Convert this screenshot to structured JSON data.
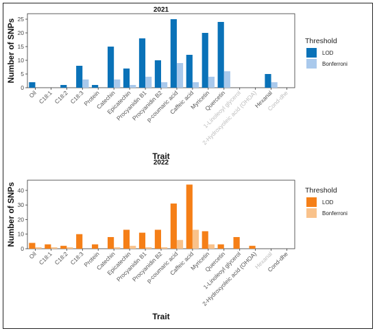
{
  "chart_data": [
    {
      "type": "bar",
      "title": "2021",
      "xlabel": "Trait",
      "ylabel": "Number of SNPs",
      "ylim": [
        0,
        27
      ],
      "yticks": [
        0,
        5,
        10,
        15,
        20,
        25
      ],
      "legend": {
        "title": "Threshold",
        "position": "right"
      },
      "categories": [
        "Oil",
        "C18:1",
        "C18:2",
        "C18:3",
        "Protein",
        "Catechin",
        "Epicatechin",
        "Procyanidin B1",
        "Procyanidin B2",
        "p-coumaric acid",
        "Caffeic acid",
        "Myricetin",
        "Quercetin",
        "1-Linoleoyl glycerol",
        "2-Hydroxyoleic acid (OHOA)",
        "Hexanal",
        "Cond-dhe"
      ],
      "dimmed_categories": [
        "1-Linoleoyl glycerol",
        "2-Hydroxyoleic acid (OHOA)",
        "Cond-dhe"
      ],
      "series": [
        {
          "name": "LOD",
          "color": "#0a72b8",
          "values": [
            2,
            0,
            1,
            8,
            1,
            15,
            7,
            18,
            10,
            25,
            12,
            20,
            24,
            0,
            0,
            5,
            0
          ]
        },
        {
          "name": "Bonferroni",
          "color": "#a9c9ec",
          "values": [
            0,
            0,
            0,
            3,
            0,
            3,
            1,
            4,
            2,
            9,
            2,
            4,
            6,
            0,
            0,
            2,
            0
          ]
        }
      ]
    },
    {
      "type": "bar",
      "title": "2022",
      "xlabel": "Trait",
      "ylabel": "Number of SNPs",
      "ylim": [
        0,
        47
      ],
      "yticks": [
        0,
        10,
        20,
        30,
        40
      ],
      "legend": {
        "title": "Threshold",
        "position": "right"
      },
      "categories": [
        "Oil",
        "C18:1",
        "C18:2",
        "C18:3",
        "Protein",
        "Catechin",
        "Epicatechin",
        "Procyanidin B1",
        "Procyanidin B2",
        "p-coumaric acid",
        "Caffeic acid",
        "Myricetin",
        "Quercetin",
        "1-Linoleoyl glycerol",
        "2-Hydroxyoleic acid (OHOA)",
        "Hexanal",
        "Cond-dhe"
      ],
      "dimmed_categories": [
        "Hexanal"
      ],
      "series": [
        {
          "name": "LOD",
          "color": "#f57f17",
          "values": [
            4,
            3,
            2,
            10,
            3,
            8,
            13,
            11,
            13,
            31,
            44,
            12,
            3,
            8,
            2,
            0,
            0
          ]
        },
        {
          "name": "Bonferroni",
          "color": "#f9c28b",
          "values": [
            1,
            1,
            1,
            0,
            0,
            1,
            2,
            1,
            1,
            6,
            13,
            3,
            0,
            0,
            0,
            0,
            0
          ]
        }
      ]
    }
  ]
}
